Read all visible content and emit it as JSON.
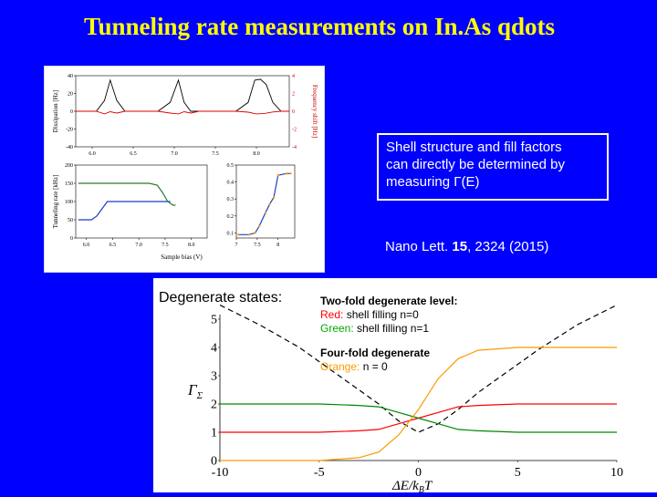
{
  "slide": {
    "title": "Tunneling rate measurements on  In.As qdots"
  },
  "note": {
    "lines": [
      "Shell structure and fill factors",
      "can directly be determined by",
      "measuring Γ(E)"
    ]
  },
  "reference": {
    "journal": "Nano Lett. ",
    "volume": "15",
    "rest": ", 2324 (2015)"
  },
  "lower": {
    "label": "Degenerate states:",
    "two_fold_title": "Two-fold degenerate level:",
    "red_key": "Red:",
    "red_text": " shell filling n=0",
    "green_key": "Green:",
    "green_text": " shell filling n=1",
    "four_fold_title": "Four-fold degenerate",
    "orange_key": "Orange:",
    "orange_text": " n = 0"
  },
  "colors": {
    "background": "#0000ff",
    "title": "#ffff00",
    "red": "#ff0000",
    "green": "#00aa00",
    "orange": "#ff9900"
  },
  "chart_data": [
    {
      "type": "line",
      "title": "",
      "xlabel": "",
      "ylabel": "Dissipation [Hz]",
      "ylabel_right": "Frequency shift [Hz]",
      "xlim": [
        5.8,
        8.4
      ],
      "ylim": [
        -40,
        40
      ],
      "ylim_right": [
        -4,
        4
      ],
      "x_ticks": [
        "6.0",
        "6.5",
        "7.0",
        "7.5",
        "8.0"
      ],
      "y_ticks": [
        "40",
        "20",
        "0",
        "-20",
        "-40"
      ],
      "y_ticks_right": [
        "4",
        "2",
        "0",
        "-2",
        "-4"
      ],
      "series": [
        {
          "values_x": [
            5.8,
            6.05,
            6.15,
            6.22,
            6.3,
            6.4,
            6.8,
            6.95,
            7.05,
            7.12,
            7.2,
            7.3,
            7.75,
            7.9,
            7.98,
            8.05,
            8.12,
            8.2,
            8.3,
            8.4
          ],
          "values_y": [
            0,
            0,
            12,
            35,
            12,
            0,
            0,
            10,
            35,
            10,
            0,
            0,
            0,
            10,
            35,
            36,
            30,
            10,
            0,
            0
          ]
        },
        {
          "values_x": [
            5.8,
            6.05,
            6.15,
            6.22,
            6.3,
            6.4,
            6.8,
            6.95,
            7.05,
            7.12,
            7.2,
            7.3,
            7.75,
            7.9,
            8.0,
            8.1,
            8.2,
            8.3,
            8.4
          ],
          "values_y": [
            0,
            0,
            -3,
            -0.5,
            -2,
            0,
            0,
            -2,
            -3,
            -0.5,
            -2,
            0,
            0,
            -1,
            -3,
            -2.5,
            -0.8,
            0,
            0
          ]
        }
      ]
    },
    {
      "type": "line",
      "title": "",
      "xlabel": "Sample bias (V)",
      "ylabel": "Tunneling rate [kHz]",
      "xlim": [
        5.8,
        8.3
      ],
      "ylim": [
        0,
        200
      ],
      "x_ticks": [
        "6.0",
        "6.5",
        "7.0",
        "7.5",
        "8.0"
      ],
      "y_ticks": [
        "200",
        "150",
        "100",
        "50",
        "0"
      ],
      "series": [
        {
          "values_x": [
            5.85,
            6.1,
            6.2,
            6.3,
            6.4,
            7.4,
            7.55,
            7.6
          ],
          "values_y": [
            50,
            50,
            60,
            80,
            100,
            100,
            100,
            100
          ]
        },
        {
          "values_x": [
            5.85,
            7.2,
            7.35,
            7.45,
            7.55,
            7.65,
            7.7
          ],
          "values_y": [
            150,
            150,
            145,
            125,
            100,
            90,
            90
          ]
        }
      ]
    },
    {
      "type": "line",
      "title": "",
      "xlabel": "",
      "ylabel": "",
      "xlim": [
        7.0,
        8.4
      ],
      "ylim": [
        0.07,
        0.5
      ],
      "x_ticks": [
        "7",
        "7.5",
        "8"
      ],
      "y_ticks": [
        "0.5",
        "0.4",
        "0.3",
        "0.2",
        "0.1"
      ],
      "series": [
        {
          "values_x": [
            7.05,
            7.3,
            7.45,
            7.55,
            7.7,
            7.8,
            7.9,
            8.0,
            8.2,
            8.3
          ],
          "values_y": [
            0.09,
            0.09,
            0.1,
            0.14,
            0.22,
            0.27,
            0.31,
            0.44,
            0.45,
            0.45
          ]
        }
      ]
    },
    {
      "type": "line",
      "title": "",
      "xlabel": "ΔE/k_BT",
      "ylabel": "Γ_Σ",
      "xlim": [
        -10,
        10
      ],
      "ylim": [
        0,
        5
      ],
      "x_ticks": [
        "-10",
        "-5",
        "0",
        "5",
        "10"
      ],
      "y_ticks": [
        "0",
        "1",
        "2",
        "3",
        "4",
        "5"
      ],
      "series": [
        {
          "color": "#000000",
          "dashed": true,
          "values_x": [
            -10,
            -8,
            -6,
            -4,
            -3,
            -2,
            -1,
            0,
            1,
            2,
            3,
            4,
            6,
            8,
            10
          ],
          "values_y": [
            5.5,
            4.8,
            4.0,
            3.0,
            2.5,
            2.0,
            1.4,
            1.0,
            1.3,
            1.8,
            2.4,
            2.9,
            3.9,
            4.8,
            5.5
          ]
        },
        {
          "color": "#ff0000",
          "values_x": [
            -10,
            -5,
            -3,
            -2,
            -1,
            0,
            1,
            2,
            3,
            5,
            10
          ],
          "values_y": [
            1,
            1,
            1.05,
            1.1,
            1.3,
            1.5,
            1.7,
            1.9,
            1.95,
            2,
            2
          ]
        },
        {
          "color": "#008800",
          "values_x": [
            -10,
            -5,
            -3,
            -2,
            -1,
            0,
            1,
            2,
            3,
            5,
            10
          ],
          "values_y": [
            2,
            2,
            1.95,
            1.9,
            1.7,
            1.5,
            1.3,
            1.1,
            1.05,
            1,
            1
          ]
        },
        {
          "color": "#ff9900",
          "values_x": [
            -10,
            -5,
            -3,
            -2,
            -1,
            0,
            1,
            2,
            3,
            5,
            10
          ],
          "values_y": [
            0,
            0,
            0.1,
            0.3,
            0.9,
            1.8,
            2.9,
            3.6,
            3.9,
            4,
            4
          ]
        }
      ]
    }
  ]
}
